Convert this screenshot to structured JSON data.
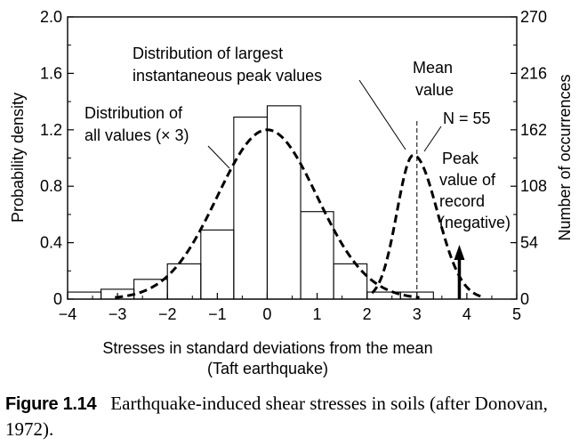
{
  "chart_data": {
    "type": "histogram",
    "xlabel": "Stresses in standard deviations from the mean",
    "xlabel_line2": "(Taft earthquake)",
    "ylabel": "Probability density",
    "ylabel_right": "Number of occurrences",
    "xlim": [
      -4,
      5
    ],
    "ylim": [
      0,
      2.0
    ],
    "ylim_right": [
      0,
      270
    ],
    "x_ticks": [
      "−4",
      "−3",
      "−2",
      "−1",
      "0",
      "1",
      "2",
      "3",
      "4",
      "5"
    ],
    "y_ticks": [
      "0",
      "0.4",
      "0.8",
      "1.2",
      "1.6",
      "2.0"
    ],
    "y_ticks_right": [
      "0",
      "54",
      "108",
      "162",
      "216",
      "270"
    ],
    "bins": {
      "edges": [
        -4,
        -3.33,
        -2.67,
        -2,
        -1.33,
        -0.67,
        0,
        0.67,
        1.33,
        2,
        2.67,
        3.33
      ],
      "values": [
        0.05,
        0.07,
        0.14,
        0.25,
        0.49,
        1.29,
        1.37,
        0.62,
        0.25,
        0.05,
        0.05
      ]
    },
    "series": [
      {
        "name": "Distribution of all values (× 3)",
        "type": "normal",
        "mean": 0,
        "sd": 1,
        "scale": 3
      },
      {
        "name": "Distribution of largest instantaneous peak values",
        "type": "peaked",
        "mode": 2.93,
        "peak": 1.02,
        "sd_left": 0.33,
        "sd_right": 0.48
      }
    ],
    "mean_line_x": 3.0,
    "peak_record_x": 3.85,
    "annotations": {
      "all_values_line1": "Distribution of",
      "all_values_line2": "all values (× 3)",
      "peak_line1": "Distribution of largest",
      "peak_line2": "instantaneous peak values",
      "mean_line1": "Mean",
      "mean_line2": "value",
      "n_label": "N = 55",
      "record_line1": "Peak",
      "record_line2": "value of",
      "record_line3": "record",
      "record_line4": "(negative)"
    }
  },
  "caption": {
    "label": "Figure 1.14",
    "text": "Earthquake-induced shear stresses in soils (after Donovan, 1972)."
  }
}
